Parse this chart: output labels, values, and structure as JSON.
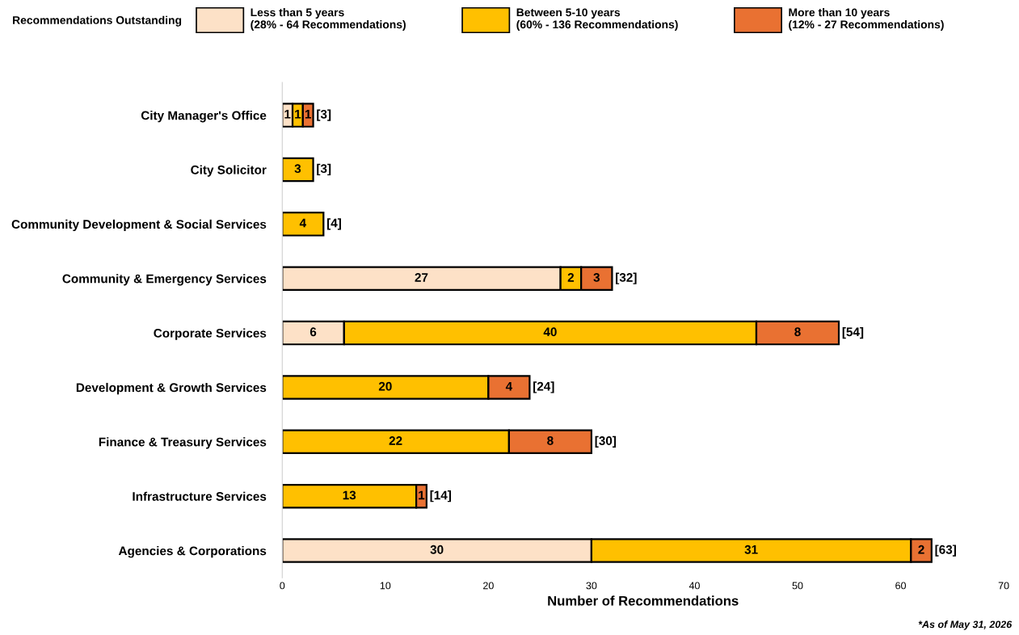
{
  "chart_data": {
    "type": "bar",
    "orientation": "horizontal",
    "stacked": true,
    "categories": [
      "City Manager's Office",
      "City Solicitor",
      "Community Development & Social Services",
      "Community & Emergency Services",
      "Corporate Services",
      "Development & Growth Services",
      "Finance & Treasury Services",
      "Infrastructure Services",
      "Agencies & Corporations"
    ],
    "series": [
      {
        "name": "Less than 5 years\n(28% - 64 Recommendations)",
        "color": "#fde1c7",
        "values": [
          1,
          null,
          null,
          27,
          6,
          null,
          null,
          null,
          30
        ]
      },
      {
        "name": "Between 5-10 years\n(60% - 136 Recommendations)",
        "color": "#ffc000",
        "values": [
          1,
          3,
          4,
          2,
          40,
          20,
          22,
          13,
          31
        ]
      },
      {
        "name": "More than 10 years\n(12% - 27 Recommendations)",
        "color": "#e97132",
        "values": [
          1,
          null,
          null,
          3,
          8,
          4,
          8,
          1,
          2
        ]
      }
    ],
    "totals": [
      "[3]",
      "[3]",
      "[4]",
      "[32]",
      "[54]",
      "[24]",
      "[30]",
      "[14]",
      "[63]"
    ],
    "data_labels": true,
    "legend_title": "Recommendations Outstanding",
    "legend": "top",
    "xlabel": "Number of Recommendations",
    "xlim": [
      0,
      70
    ],
    "xticks": [
      0,
      10,
      20,
      30,
      40,
      50,
      60,
      70
    ],
    "grid": false,
    "annotations": [
      "*As of May 31, 2026"
    ]
  }
}
